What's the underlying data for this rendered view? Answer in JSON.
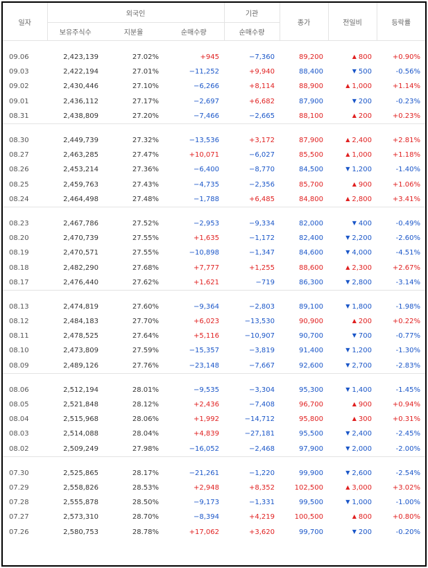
{
  "headers": {
    "date": "일자",
    "foreign_group": "외국인",
    "institution_group": "기관",
    "holdings": "보유주식수",
    "ratio": "지분율",
    "foreign_net": "순매수량",
    "inst_net": "순매수량",
    "close": "종가",
    "change": "전일비",
    "rate": "등락률"
  },
  "colors": {
    "up": "#e02020",
    "down": "#1a56c8"
  },
  "icons": {
    "up": "triangle-up-icon",
    "down": "triangle-down-icon"
  },
  "groups": [
    [
      [
        "09.06",
        "2,423,139",
        "27.02%",
        "+945",
        "-7,360",
        "89,200",
        "up",
        "800",
        "+0.90%"
      ],
      [
        "09.03",
        "2,422,194",
        "27.01%",
        "-11,252",
        "+9,940",
        "88,400",
        "down",
        "500",
        "-0.56%"
      ],
      [
        "09.02",
        "2,430,446",
        "27.10%",
        "-6,266",
        "+8,114",
        "88,900",
        "up",
        "1,000",
        "+1.14%"
      ],
      [
        "09.01",
        "2,436,112",
        "27.17%",
        "-2,697",
        "+6,682",
        "87,900",
        "down",
        "200",
        "-0.23%"
      ],
      [
        "08.31",
        "2,438,809",
        "27.20%",
        "-7,466",
        "-2,665",
        "88,100",
        "up",
        "200",
        "+0.23%"
      ]
    ],
    [
      [
        "08.30",
        "2,449,739",
        "27.32%",
        "-13,536",
        "+3,172",
        "87,900",
        "up",
        "2,400",
        "+2.81%"
      ],
      [
        "08.27",
        "2,463,285",
        "27.47%",
        "+10,071",
        "-6,027",
        "85,500",
        "up",
        "1,000",
        "+1.18%"
      ],
      [
        "08.26",
        "2,453,214",
        "27.36%",
        "-6,400",
        "-8,770",
        "84,500",
        "down",
        "1,200",
        "-1.40%"
      ],
      [
        "08.25",
        "2,459,763",
        "27.43%",
        "-4,735",
        "-2,356",
        "85,700",
        "up",
        "900",
        "+1.06%"
      ],
      [
        "08.24",
        "2,464,498",
        "27.48%",
        "-1,788",
        "+6,485",
        "84,800",
        "up",
        "2,800",
        "+3.41%"
      ]
    ],
    [
      [
        "08.23",
        "2,467,786",
        "27.52%",
        "-2,953",
        "-9,334",
        "82,000",
        "down",
        "400",
        "-0.49%"
      ],
      [
        "08.20",
        "2,470,739",
        "27.55%",
        "+1,635",
        "-1,172",
        "82,400",
        "down",
        "2,200",
        "-2.60%"
      ],
      [
        "08.19",
        "2,470,571",
        "27.55%",
        "-10,898",
        "-1,347",
        "84,600",
        "down",
        "4,000",
        "-4.51%"
      ],
      [
        "08.18",
        "2,482,290",
        "27.68%",
        "+7,777",
        "+1,255",
        "88,600",
        "up",
        "2,300",
        "+2.67%"
      ],
      [
        "08.17",
        "2,476,440",
        "27.62%",
        "+1,621",
        "-719",
        "86,300",
        "down",
        "2,800",
        "-3.14%"
      ]
    ],
    [
      [
        "08.13",
        "2,474,819",
        "27.60%",
        "-9,364",
        "-2,803",
        "89,100",
        "down",
        "1,800",
        "-1.98%"
      ],
      [
        "08.12",
        "2,484,183",
        "27.70%",
        "+6,023",
        "-13,530",
        "90,900",
        "up",
        "200",
        "+0.22%"
      ],
      [
        "08.11",
        "2,478,525",
        "27.64%",
        "+5,116",
        "-10,907",
        "90,700",
        "down",
        "700",
        "-0.77%"
      ],
      [
        "08.10",
        "2,473,809",
        "27.59%",
        "-15,357",
        "-3,819",
        "91,400",
        "down",
        "1,200",
        "-1.30%"
      ],
      [
        "08.09",
        "2,489,126",
        "27.76%",
        "-23,148",
        "-7,667",
        "92,600",
        "down",
        "2,700",
        "-2.83%"
      ]
    ],
    [
      [
        "08.06",
        "2,512,194",
        "28.01%",
        "-9,535",
        "-3,304",
        "95,300",
        "down",
        "1,400",
        "-1.45%"
      ],
      [
        "08.05",
        "2,521,848",
        "28.12%",
        "+2,436",
        "-7,408",
        "96,700",
        "up",
        "900",
        "+0.94%"
      ],
      [
        "08.04",
        "2,515,968",
        "28.06%",
        "+1,992",
        "-14,712",
        "95,800",
        "up",
        "300",
        "+0.31%"
      ],
      [
        "08.03",
        "2,514,088",
        "28.04%",
        "+4,839",
        "-27,181",
        "95,500",
        "down",
        "2,400",
        "-2.45%"
      ],
      [
        "08.02",
        "2,509,249",
        "27.98%",
        "-16,052",
        "-2,468",
        "97,900",
        "down",
        "2,000",
        "-2.00%"
      ]
    ],
    [
      [
        "07.30",
        "2,525,865",
        "28.17%",
        "-21,261",
        "-1,220",
        "99,900",
        "down",
        "2,600",
        "-2.54%"
      ],
      [
        "07.29",
        "2,558,826",
        "28.53%",
        "+2,948",
        "+8,352",
        "102,500",
        "up",
        "3,000",
        "+3.02%"
      ],
      [
        "07.28",
        "2,555,878",
        "28.50%",
        "-9,173",
        "-1,331",
        "99,500",
        "down",
        "1,000",
        "-1.00%"
      ],
      [
        "07.27",
        "2,573,310",
        "28.70%",
        "-8,394",
        "+4,219",
        "100,500",
        "up",
        "800",
        "+0.80%"
      ],
      [
        "07.26",
        "2,580,753",
        "28.78%",
        "+17,062",
        "+3,620",
        "99,700",
        "down",
        "200",
        "-0.20%"
      ]
    ]
  ]
}
